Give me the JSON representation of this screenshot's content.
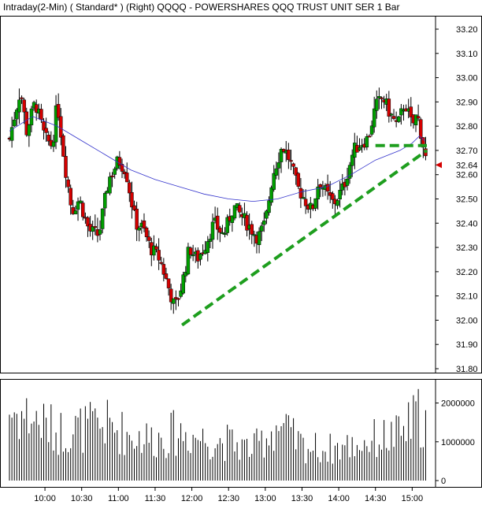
{
  "title": "Intraday(2-Min) ( Standard* )   (Right)   QQQQ - POWERSHARES QQQ TRUST UNIT SER 1   Bar",
  "colors": {
    "background": "#ffffff",
    "up_candle": "#00a000",
    "down_candle": "#d40000",
    "wick": "#000000",
    "moving_average": "#3333cc",
    "trendline": "#1e9e1e",
    "volume_bar": "#000000",
    "last_price_marker": "#d40000"
  },
  "chart_data": [
    {
      "type": "candlestick",
      "title": "Intraday(2-Min) ( Standard* )   (Right)   QQQQ - POWERSHARES QQQ TRUST UNIT SER 1   Bar",
      "ylim": [
        31.8,
        33.2
      ],
      "yticks": [
        "33.20",
        "33.10",
        "33.00",
        "32.90",
        "32.80",
        "32.70",
        "32.64",
        "32.60",
        "32.50",
        "32.40",
        "32.30",
        "32.20",
        "32.10",
        "32.00",
        "31.90",
        "31.80"
      ],
      "last_price": 32.64,
      "x_axis_time_range": [
        "09:31",
        "15:12"
      ],
      "x_ticks": [
        "10:00",
        "10:30",
        "11:00",
        "11:30",
        "12:00",
        "12:30",
        "13:00",
        "13:30",
        "14:00",
        "14:30",
        "15:00"
      ],
      "close_path": [
        [
          "09:31",
          32.75
        ],
        [
          "09:40",
          32.95
        ],
        [
          "09:45",
          32.78
        ],
        [
          "09:52",
          32.9
        ],
        [
          "10:00",
          32.75
        ],
        [
          "10:06",
          32.72
        ],
        [
          "10:10",
          32.9
        ],
        [
          "10:16",
          32.65
        ],
        [
          "10:22",
          32.45
        ],
        [
          "10:28",
          32.5
        ],
        [
          "10:36",
          32.37
        ],
        [
          "10:44",
          32.35
        ],
        [
          "10:52",
          32.58
        ],
        [
          "11:00",
          32.66
        ],
        [
          "11:06",
          32.62
        ],
        [
          "11:14",
          32.4
        ],
        [
          "11:20",
          32.38
        ],
        [
          "11:26",
          32.3
        ],
        [
          "11:34",
          32.25
        ],
        [
          "11:40",
          32.15
        ],
        [
          "11:46",
          32.05
        ],
        [
          "11:52",
          32.15
        ],
        [
          "11:58",
          32.3
        ],
        [
          "12:04",
          32.25
        ],
        [
          "12:10",
          32.3
        ],
        [
          "12:18",
          32.4
        ],
        [
          "12:26",
          32.35
        ],
        [
          "12:34",
          32.47
        ],
        [
          "12:42",
          32.42
        ],
        [
          "12:48",
          32.38
        ],
        [
          "12:54",
          32.34
        ],
        [
          "13:00",
          32.4
        ],
        [
          "13:06",
          32.6
        ],
        [
          "13:14",
          32.72
        ],
        [
          "13:20",
          32.66
        ],
        [
          "13:26",
          32.55
        ],
        [
          "13:32",
          32.5
        ],
        [
          "13:38",
          32.45
        ],
        [
          "13:44",
          32.58
        ],
        [
          "13:50",
          32.52
        ],
        [
          "13:56",
          32.48
        ],
        [
          "14:04",
          32.55
        ],
        [
          "14:12",
          32.7
        ],
        [
          "14:18",
          32.73
        ],
        [
          "14:24",
          32.75
        ],
        [
          "14:30",
          32.88
        ],
        [
          "14:36",
          32.92
        ],
        [
          "14:42",
          32.85
        ],
        [
          "14:48",
          32.8
        ],
        [
          "14:54",
          32.9
        ],
        [
          "15:00",
          32.8
        ],
        [
          "15:04",
          32.85
        ],
        [
          "15:08",
          32.75
        ],
        [
          "15:12",
          32.64
        ]
      ],
      "moving_average": [
        [
          "09:31",
          32.78
        ],
        [
          "09:50",
          32.84
        ],
        [
          "10:10",
          32.8
        ],
        [
          "10:30",
          32.74
        ],
        [
          "10:50",
          32.68
        ],
        [
          "11:10",
          32.62
        ],
        [
          "11:30",
          32.58
        ],
        [
          "11:50",
          32.55
        ],
        [
          "12:10",
          32.52
        ],
        [
          "12:30",
          32.5
        ],
        [
          "12:50",
          32.49
        ],
        [
          "13:10",
          32.5
        ],
        [
          "13:30",
          32.53
        ],
        [
          "13:50",
          32.55
        ],
        [
          "14:10",
          32.6
        ],
        [
          "14:30",
          32.66
        ],
        [
          "14:50",
          32.7
        ],
        [
          "15:00",
          32.73
        ],
        [
          "15:06",
          32.76
        ],
        [
          "15:10",
          32.74
        ]
      ],
      "trendlines": [
        {
          "from": [
            "11:52",
            31.98
          ],
          "to": [
            "15:12",
            32.7
          ]
        },
        {
          "from": [
            "14:30",
            32.72
          ],
          "to": [
            "15:12",
            32.72
          ]
        }
      ]
    },
    {
      "type": "bar",
      "name": "volume",
      "ylim": [
        0,
        2600000
      ],
      "yticks": [
        "2000000",
        "1000000",
        "0"
      ],
      "x_axis_time_range": [
        "09:31",
        "15:12"
      ],
      "volume_profile": [
        [
          "09:31",
          2000000
        ],
        [
          "09:50",
          1800000
        ],
        [
          "10:10",
          1400000
        ],
        [
          "10:30",
          1500000
        ],
        [
          "10:50",
          1600000
        ],
        [
          "11:10",
          1300000
        ],
        [
          "11:30",
          1200000
        ],
        [
          "11:50",
          1400000
        ],
        [
          "12:10",
          1200000
        ],
        [
          "12:30",
          1100000
        ],
        [
          "12:50",
          900000
        ],
        [
          "13:10",
          1600000
        ],
        [
          "13:30",
          1000000
        ],
        [
          "13:50",
          900000
        ],
        [
          "14:10",
          1000000
        ],
        [
          "14:30",
          1200000
        ],
        [
          "14:50",
          1300000
        ],
        [
          "15:06",
          1900000
        ],
        [
          "15:12",
          1600000
        ]
      ]
    }
  ]
}
